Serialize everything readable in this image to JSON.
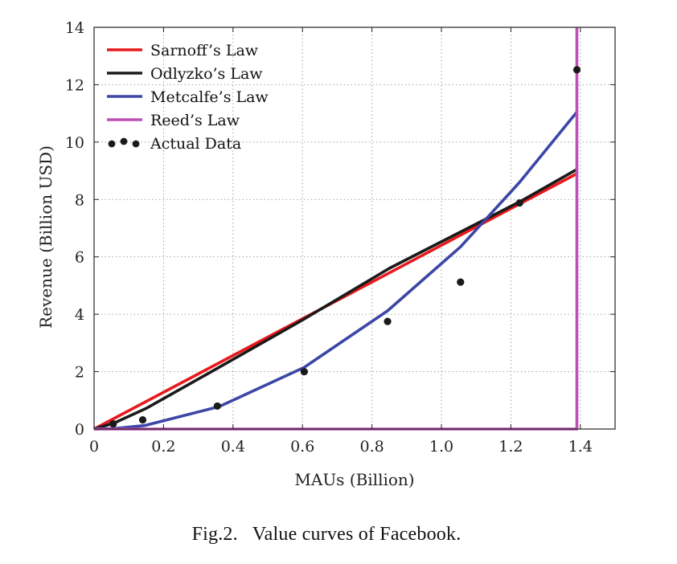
{
  "caption": {
    "label": "Fig.2.",
    "text": "Value curves of Facebook."
  },
  "chart_data": {
    "type": "line",
    "title": "",
    "xlabel": "MAUs (Billion)",
    "ylabel": "Revenue (Billion USD)",
    "xlim": [
      0,
      1.5
    ],
    "ylim": [
      0,
      14
    ],
    "xticks": [
      0,
      0.2,
      0.4,
      0.6,
      0.8,
      1.0,
      1.2,
      1.4
    ],
    "xtick_labels": [
      "0",
      "0.2",
      "0.4",
      "0.6",
      "0.8",
      "1.0",
      "1.2",
      "1.4"
    ],
    "yticks": [
      0,
      2,
      4,
      6,
      8,
      10,
      12,
      14
    ],
    "ytick_labels": [
      "0",
      "2",
      "4",
      "6",
      "8",
      "10",
      "12",
      "14"
    ],
    "grid": true,
    "legend_position": "top-left",
    "series": [
      {
        "name": "Sarnoff’s Law",
        "style": "line",
        "color": "#e8191c",
        "x": [
          0,
          1.39
        ],
        "y": [
          0,
          8.9
        ]
      },
      {
        "name": "Odlyzko’s Law",
        "style": "line",
        "color": "#1a1a1a",
        "x": [
          0,
          0.06,
          0.15,
          0.36,
          0.6,
          0.85,
          1.06,
          1.23,
          1.39
        ],
        "y": [
          0,
          0.22,
          0.72,
          2.15,
          3.8,
          5.6,
          6.9,
          7.95,
          9.05
        ]
      },
      {
        "name": "Metcalfe’s Law",
        "style": "line",
        "color": "#3b46a6",
        "x": [
          0,
          0.06,
          0.145,
          0.36,
          0.605,
          0.845,
          1.055,
          1.225,
          1.39
        ],
        "y": [
          0,
          0.02,
          0.12,
          0.78,
          2.15,
          4.12,
          6.35,
          8.6,
          11.05
        ]
      },
      {
        "name": "Reed’s Law",
        "style": "line",
        "color": "#c04fb6",
        "x": [
          0,
          1.385,
          1.39,
          1.39
        ],
        "y": [
          0,
          0,
          0,
          14
        ]
      },
      {
        "name": "Actual Data",
        "style": "scatter",
        "color": "#1a1a1a",
        "x": [
          0.055,
          0.14,
          0.355,
          0.605,
          0.845,
          1.055,
          1.225,
          1.39
        ],
        "y": [
          0.18,
          0.32,
          0.8,
          2.0,
          3.75,
          5.12,
          7.88,
          12.52
        ]
      }
    ]
  }
}
